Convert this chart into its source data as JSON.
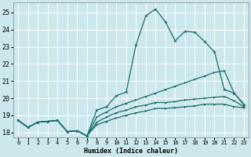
{
  "xlabel": "Humidex (Indice chaleur)",
  "background_color": "#cce8ec",
  "grid_color": "#ffffff",
  "line_color": "#1a6e6a",
  "xlim": [
    -0.5,
    23.5
  ],
  "ylim": [
    17.7,
    25.6
  ],
  "xticks": [
    0,
    1,
    2,
    3,
    4,
    5,
    6,
    7,
    8,
    9,
    10,
    11,
    12,
    13,
    14,
    15,
    16,
    17,
    18,
    19,
    20,
    21,
    22,
    23
  ],
  "yticks": [
    18,
    19,
    20,
    21,
    22,
    23,
    24,
    25
  ],
  "line1": {
    "x": [
      0,
      1,
      2,
      3,
      4,
      5,
      6,
      7,
      8,
      9,
      10,
      11,
      12,
      13,
      14,
      15,
      16,
      17,
      18,
      19,
      20,
      21,
      22,
      23
    ],
    "y": [
      18.7,
      18.3,
      18.6,
      18.65,
      18.7,
      18.05,
      18.1,
      17.8,
      19.3,
      19.5,
      20.15,
      20.35,
      23.1,
      24.8,
      25.2,
      24.45,
      23.35,
      23.9,
      23.85,
      23.3,
      22.7,
      20.5,
      20.3,
      19.6
    ]
  },
  "line2": {
    "x": [
      0,
      1,
      2,
      3,
      4,
      5,
      6,
      7,
      8,
      9,
      10,
      11,
      12,
      13,
      14,
      15,
      16,
      17,
      18,
      19,
      20,
      21,
      22,
      23
    ],
    "y": [
      18.7,
      18.3,
      18.6,
      18.65,
      18.7,
      18.05,
      18.1,
      17.8,
      18.9,
      19.2,
      19.5,
      19.7,
      19.9,
      20.1,
      20.3,
      20.5,
      20.7,
      20.9,
      21.1,
      21.3,
      21.5,
      21.6,
      20.3,
      19.65
    ]
  },
  "line3": {
    "x": [
      0,
      1,
      2,
      3,
      4,
      5,
      6,
      7,
      8,
      9,
      10,
      11,
      12,
      13,
      14,
      15,
      16,
      17,
      18,
      19,
      20,
      21,
      22,
      23
    ],
    "y": [
      18.7,
      18.3,
      18.6,
      18.65,
      18.7,
      18.05,
      18.1,
      17.8,
      18.6,
      18.9,
      19.15,
      19.3,
      19.5,
      19.6,
      19.75,
      19.75,
      19.8,
      19.9,
      19.95,
      20.0,
      20.05,
      20.1,
      19.85,
      19.5
    ]
  },
  "line4": {
    "x": [
      0,
      1,
      2,
      3,
      4,
      5,
      6,
      7,
      8,
      9,
      10,
      11,
      12,
      13,
      14,
      15,
      16,
      17,
      18,
      19,
      20,
      21,
      22,
      23
    ],
    "y": [
      18.7,
      18.3,
      18.6,
      18.65,
      18.7,
      18.05,
      18.1,
      17.8,
      18.45,
      18.65,
      18.85,
      19.0,
      19.15,
      19.25,
      19.4,
      19.4,
      19.45,
      19.5,
      19.55,
      19.65,
      19.65,
      19.65,
      19.5,
      19.45
    ]
  }
}
